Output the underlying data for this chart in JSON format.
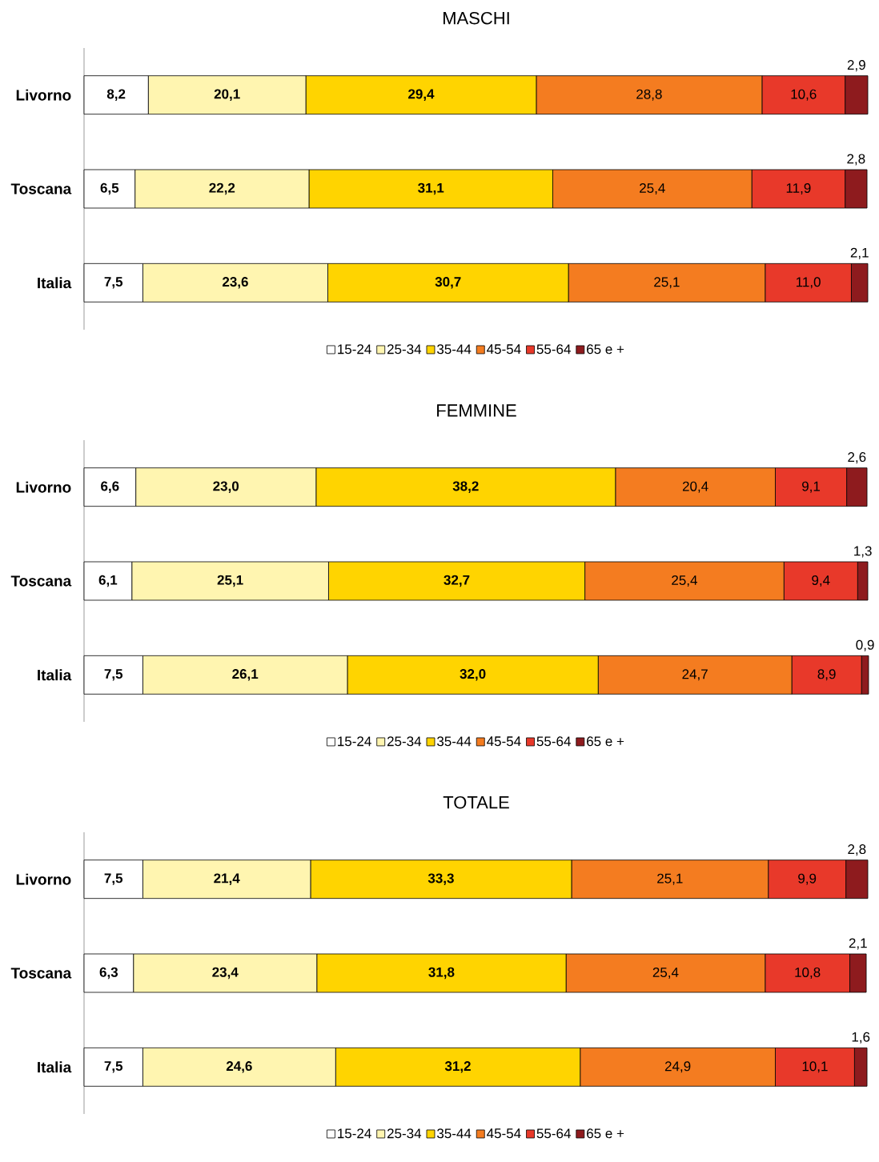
{
  "chart_data": [
    {
      "type": "bar",
      "orientation": "horizontal",
      "stacked": true,
      "title": "MASCHI",
      "categories": [
        "Livorno",
        "Toscana",
        "Italia"
      ],
      "xlim": [
        0,
        100.1
      ],
      "legend": "bottom",
      "tick_labels": "y",
      "series": [
        {
          "name": "15-24",
          "color": "#ffffff",
          "values": [
            8.2,
            6.5,
            7.5
          ],
          "value_labels": [
            "8,2",
            "6,5",
            "7,5"
          ]
        },
        {
          "name": "25-34",
          "color": "#fff5b0",
          "values": [
            20.1,
            22.2,
            23.6
          ],
          "value_labels": [
            "20,1",
            "22,2",
            "23,6"
          ]
        },
        {
          "name": "35-44",
          "color": "#ffd400",
          "values": [
            29.4,
            31.1,
            30.7
          ],
          "value_labels": [
            "29,4",
            "31,1",
            "30,7"
          ]
        },
        {
          "name": "45-54",
          "color": "#f47c20",
          "values": [
            28.8,
            25.4,
            25.1
          ],
          "value_labels": [
            "28,8",
            "25,4",
            "25,1"
          ]
        },
        {
          "name": "55-64",
          "color": "#e8392a",
          "values": [
            10.6,
            11.9,
            11.0
          ],
          "value_labels": [
            "10,6",
            "11,9",
            "11,0"
          ]
        },
        {
          "name": "65 e +",
          "color": "#8e1b1e",
          "values": [
            2.9,
            2.8,
            2.1
          ],
          "value_labels": [
            "2,9",
            "2,8",
            "2,1"
          ]
        }
      ]
    },
    {
      "type": "bar",
      "orientation": "horizontal",
      "stacked": true,
      "title": "FEMMINE",
      "categories": [
        "Livorno",
        "Toscana",
        "Italia"
      ],
      "xlim": [
        0,
        100.1
      ],
      "legend": "bottom",
      "tick_labels": "y",
      "series": [
        {
          "name": "15-24",
          "color": "#ffffff",
          "values": [
            6.6,
            6.1,
            7.5
          ],
          "value_labels": [
            "6,6",
            "6,1",
            "7,5"
          ]
        },
        {
          "name": "25-34",
          "color": "#fff5b0",
          "values": [
            23.0,
            25.1,
            26.1
          ],
          "value_labels": [
            "23,0",
            "25,1",
            "26,1"
          ]
        },
        {
          "name": "35-44",
          "color": "#ffd400",
          "values": [
            38.2,
            32.7,
            32.0
          ],
          "value_labels": [
            "38,2",
            "32,7",
            "32,0"
          ]
        },
        {
          "name": "45-54",
          "color": "#f47c20",
          "values": [
            20.4,
            25.4,
            24.7
          ],
          "value_labels": [
            "20,4",
            "25,4",
            "24,7"
          ]
        },
        {
          "name": "55-64",
          "color": "#e8392a",
          "values": [
            9.1,
            9.4,
            8.9
          ],
          "value_labels": [
            "9,1",
            "9,4",
            "8,9"
          ]
        },
        {
          "name": "65 e +",
          "color": "#8e1b1e",
          "values": [
            2.6,
            1.3,
            0.9
          ],
          "value_labels": [
            "2,6",
            "1,3",
            "0,9"
          ]
        }
      ]
    },
    {
      "type": "bar",
      "orientation": "horizontal",
      "stacked": true,
      "title": "TOTALE",
      "categories": [
        "Livorno",
        "Toscana",
        "Italia"
      ],
      "xlim": [
        0,
        100.1
      ],
      "legend": "bottom",
      "tick_labels": "y",
      "series": [
        {
          "name": "15-24",
          "color": "#ffffff",
          "values": [
            7.5,
            6.3,
            7.5
          ],
          "value_labels": [
            "7,5",
            "6,3",
            "7,5"
          ]
        },
        {
          "name": "25-34",
          "color": "#fff5b0",
          "values": [
            21.4,
            23.4,
            24.6
          ],
          "value_labels": [
            "21,4",
            "23,4",
            "24,6"
          ]
        },
        {
          "name": "35-44",
          "color": "#ffd400",
          "values": [
            33.3,
            31.8,
            31.2
          ],
          "value_labels": [
            "33,3",
            "31,8",
            "31,2"
          ]
        },
        {
          "name": "45-54",
          "color": "#f47c20",
          "values": [
            25.1,
            25.4,
            24.9
          ],
          "value_labels": [
            "25,1",
            "25,4",
            "24,9"
          ]
        },
        {
          "name": "55-64",
          "color": "#e8392a",
          "values": [
            9.9,
            10.8,
            10.1
          ],
          "value_labels": [
            "9,9",
            "10,8",
            "10,1"
          ]
        },
        {
          "name": "65 e +",
          "color": "#8e1b1e",
          "values": [
            2.8,
            2.1,
            1.6
          ],
          "value_labels": [
            "2,8",
            "2,1",
            "1,6"
          ]
        }
      ]
    }
  ]
}
